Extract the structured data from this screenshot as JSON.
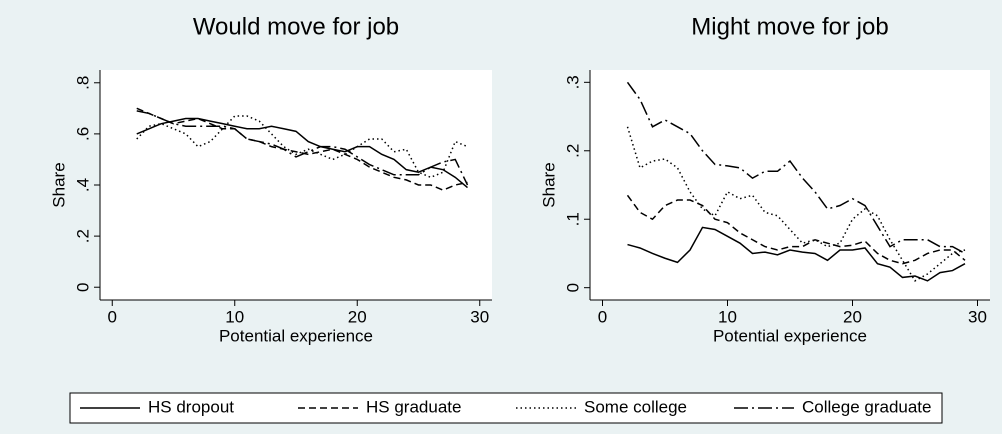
{
  "chart_data": [
    {
      "type": "line",
      "title": "Would move for job",
      "x_label": "Potential experience",
      "y_label": "Share",
      "x": [
        2,
        3,
        4,
        5,
        6,
        7,
        8,
        9,
        10,
        11,
        12,
        13,
        14,
        15,
        16,
        17,
        18,
        19,
        20,
        21,
        22,
        23,
        24,
        25,
        26,
        27,
        28,
        29
      ],
      "xlim": [
        -1,
        31
      ],
      "xticks": [
        0,
        10,
        20,
        30
      ],
      "ylim": [
        -0.05,
        0.85
      ],
      "yticks": [
        0,
        {
          "value": 0.2,
          "label": ".2"
        },
        {
          "value": 0.4,
          "label": ".4"
        },
        {
          "value": 0.6,
          "label": ".6"
        },
        {
          "value": 0.8,
          "label": ".8"
        }
      ],
      "legend": "bottom",
      "series": [
        {
          "name": "HS dropout",
          "color": "#000000",
          "dash": "solid",
          "values": [
            0.6,
            0.62,
            0.64,
            0.65,
            0.66,
            0.66,
            0.65,
            0.64,
            0.63,
            0.62,
            0.62,
            0.63,
            0.62,
            0.61,
            0.57,
            0.55,
            0.54,
            0.53,
            0.55,
            0.55,
            0.52,
            0.5,
            0.46,
            0.45,
            0.47,
            0.46,
            0.43,
            0.39
          ]
        },
        {
          "name": "HS graduate",
          "color": "#000000",
          "dash": "dashed",
          "values": [
            0.7,
            0.68,
            0.66,
            0.64,
            0.65,
            0.66,
            0.64,
            0.62,
            0.62,
            0.58,
            0.57,
            0.55,
            0.54,
            0.53,
            0.52,
            0.53,
            0.54,
            0.52,
            0.5,
            0.47,
            0.45,
            0.43,
            0.42,
            0.4,
            0.4,
            0.38,
            0.4,
            0.41
          ]
        },
        {
          "name": "Some college",
          "color": "#000000",
          "dash": "dotted",
          "values": [
            0.58,
            0.63,
            0.64,
            0.62,
            0.6,
            0.55,
            0.57,
            0.62,
            0.67,
            0.67,
            0.65,
            0.6,
            0.55,
            0.52,
            0.54,
            0.52,
            0.5,
            0.52,
            0.55,
            0.58,
            0.58,
            0.53,
            0.54,
            0.45,
            0.43,
            0.45,
            0.57,
            0.55
          ]
        },
        {
          "name": "College graduate",
          "color": "#000000",
          "dash": "dashdot",
          "values": [
            0.69,
            0.68,
            0.66,
            0.64,
            0.63,
            0.63,
            0.63,
            0.63,
            0.62,
            0.58,
            0.57,
            0.56,
            0.54,
            0.51,
            0.53,
            0.55,
            0.55,
            0.54,
            0.51,
            0.48,
            0.46,
            0.44,
            0.44,
            0.44,
            0.47,
            0.49,
            0.5,
            0.4
          ]
        }
      ]
    },
    {
      "type": "line",
      "title": "Might move for job",
      "x_label": "Potential experience",
      "y_label": "Share",
      "x": [
        2,
        3,
        4,
        5,
        6,
        7,
        8,
        9,
        10,
        11,
        12,
        13,
        14,
        15,
        16,
        17,
        18,
        19,
        20,
        21,
        22,
        23,
        24,
        25,
        26,
        27,
        28,
        29
      ],
      "xlim": [
        -1,
        31
      ],
      "xticks": [
        0,
        10,
        20,
        30
      ],
      "ylim": [
        -0.018,
        0.318
      ],
      "yticks": [
        0,
        {
          "value": 0.1,
          "label": ".1"
        },
        {
          "value": 0.2,
          "label": ".2"
        },
        {
          "value": 0.3,
          "label": ".3"
        }
      ],
      "series": [
        {
          "color": "#000000",
          "dash": "solid",
          "values": [
            0.063,
            0.058,
            0.05,
            0.043,
            0.037,
            0.055,
            0.088,
            0.085,
            0.075,
            0.065,
            0.05,
            0.052,
            0.048,
            0.055,
            0.052,
            0.05,
            0.04,
            0.055,
            0.055,
            0.058,
            0.035,
            0.03,
            0.015,
            0.017,
            0.01,
            0.022,
            0.025,
            0.035
          ]
        },
        {
          "color": "#000000",
          "dash": "dashed",
          "values": [
            0.135,
            0.11,
            0.1,
            0.12,
            0.128,
            0.128,
            0.12,
            0.1,
            0.095,
            0.08,
            0.07,
            0.06,
            0.055,
            0.06,
            0.06,
            0.07,
            0.065,
            0.06,
            0.062,
            0.068,
            0.05,
            0.04,
            0.035,
            0.04,
            0.05,
            0.055,
            0.055,
            0.04
          ]
        },
        {
          "color": "#000000",
          "dash": "dotted",
          "values": [
            0.235,
            0.175,
            0.185,
            0.188,
            0.175,
            0.14,
            0.115,
            0.105,
            0.14,
            0.13,
            0.135,
            0.11,
            0.105,
            0.085,
            0.065,
            0.07,
            0.06,
            0.065,
            0.1,
            0.115,
            0.105,
            0.07,
            0.04,
            0.01,
            0.02,
            0.035,
            0.05,
            0.055
          ]
        },
        {
          "color": "#000000",
          "dash": "dashdot",
          "values": [
            0.3,
            0.275,
            0.235,
            0.245,
            0.235,
            0.225,
            0.2,
            0.18,
            0.178,
            0.175,
            0.16,
            0.17,
            0.17,
            0.185,
            0.16,
            0.14,
            0.115,
            0.12,
            0.13,
            0.12,
            0.09,
            0.06,
            0.07,
            0.07,
            0.07,
            0.06,
            0.06,
            0.05
          ]
        }
      ]
    }
  ]
}
